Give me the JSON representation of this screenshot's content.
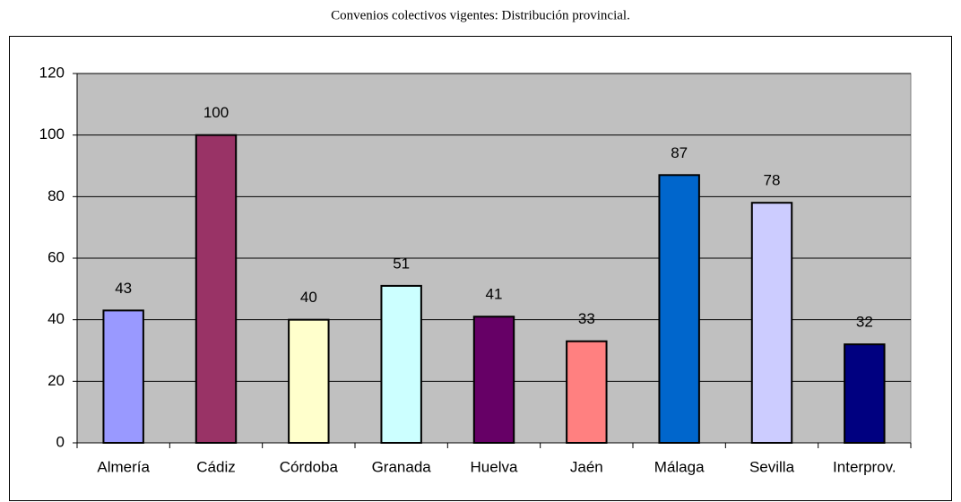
{
  "chart_data": {
    "type": "bar",
    "title": "Convenios colectivos vigentes: Distribución provincial.",
    "categories": [
      "Almería",
      "Cádiz",
      "Córdoba",
      "Granada",
      "Huelva",
      "Jaén",
      "Málaga",
      "Sevilla",
      "Interprov."
    ],
    "values": [
      43,
      100,
      40,
      51,
      41,
      33,
      87,
      78,
      32
    ],
    "colors": [
      "#9999ff",
      "#993366",
      "#ffffcc",
      "#ccffff",
      "#660066",
      "#ff8080",
      "#0066cc",
      "#ccccff",
      "#000080"
    ],
    "ylim": [
      0,
      120
    ],
    "yticks": [
      0,
      20,
      40,
      60,
      80,
      100,
      120
    ],
    "grid": true,
    "data_labels": true
  }
}
